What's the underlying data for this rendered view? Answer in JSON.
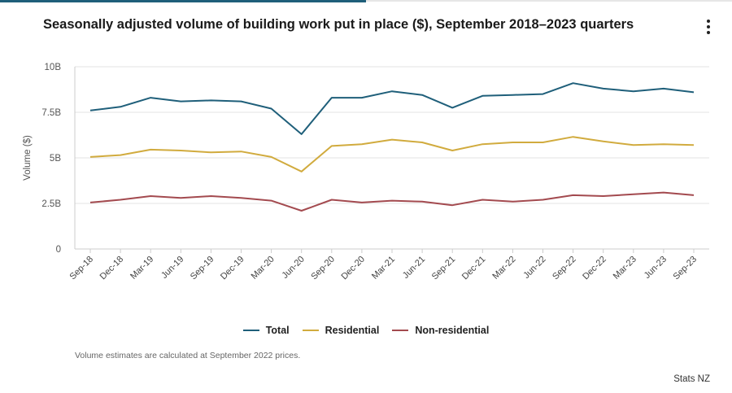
{
  "title": "Seasonally adjusted volume of building work put in place ($), September 2018–2023 quarters",
  "note": "Volume estimates are calculated at September 2022 prices.",
  "source": "Stats NZ",
  "chart_data": {
    "type": "line",
    "ylabel": "Volume ($)",
    "xlabel": "",
    "ylim": [
      0,
      10
    ],
    "yticks": [
      0,
      2.5,
      5,
      7.5,
      10
    ],
    "ytick_labels": [
      "0",
      "2.5B",
      "5B",
      "7.5B",
      "10B"
    ],
    "grid": true,
    "legend_position": "bottom",
    "categories": [
      "Sep-18",
      "Dec-18",
      "Mar-19",
      "Jun-19",
      "Sep-19",
      "Dec-19",
      "Mar-20",
      "Jun-20",
      "Sep-20",
      "Dec-20",
      "Mar-21",
      "Jun-21",
      "Sep-21",
      "Dec-21",
      "Mar-22",
      "Jun-22",
      "Sep-22",
      "Dec-22",
      "Mar-23",
      "Jun-23",
      "Sep-23"
    ],
    "series": [
      {
        "name": "Total",
        "color": "#1f5f7a",
        "values": [
          7.6,
          7.8,
          8.3,
          8.1,
          8.15,
          8.1,
          7.7,
          6.3,
          8.3,
          8.3,
          8.65,
          8.45,
          7.75,
          8.4,
          8.45,
          8.5,
          9.1,
          8.8,
          8.65,
          8.8,
          8.6
        ]
      },
      {
        "name": "Residential",
        "color": "#d1ab3e",
        "values": [
          5.05,
          5.15,
          5.45,
          5.4,
          5.3,
          5.35,
          5.05,
          4.25,
          5.65,
          5.75,
          6.0,
          5.85,
          5.4,
          5.75,
          5.85,
          5.85,
          6.15,
          5.9,
          5.7,
          5.75,
          5.7
        ]
      },
      {
        "name": "Non-residential",
        "color": "#a34a4f",
        "values": [
          2.55,
          2.7,
          2.9,
          2.8,
          2.9,
          2.8,
          2.65,
          2.1,
          2.7,
          2.55,
          2.65,
          2.6,
          2.4,
          2.7,
          2.6,
          2.7,
          2.95,
          2.9,
          3.0,
          3.1,
          2.95
        ]
      }
    ]
  }
}
